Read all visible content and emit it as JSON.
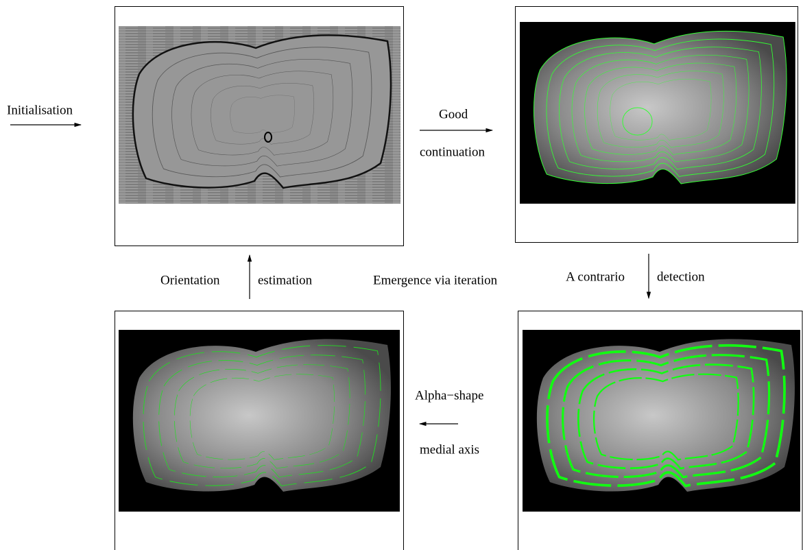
{
  "labels": {
    "initialisation": "Initialisation",
    "good": "Good",
    "continuation": "continuation",
    "orientation": "Orientation",
    "estimation": "estimation",
    "emergence": "Emergence via iteration",
    "a_contrario": "A contrario",
    "detection": "detection",
    "alpha_shape": "Alpha−shape",
    "medial_axis": "medial axis"
  }
}
